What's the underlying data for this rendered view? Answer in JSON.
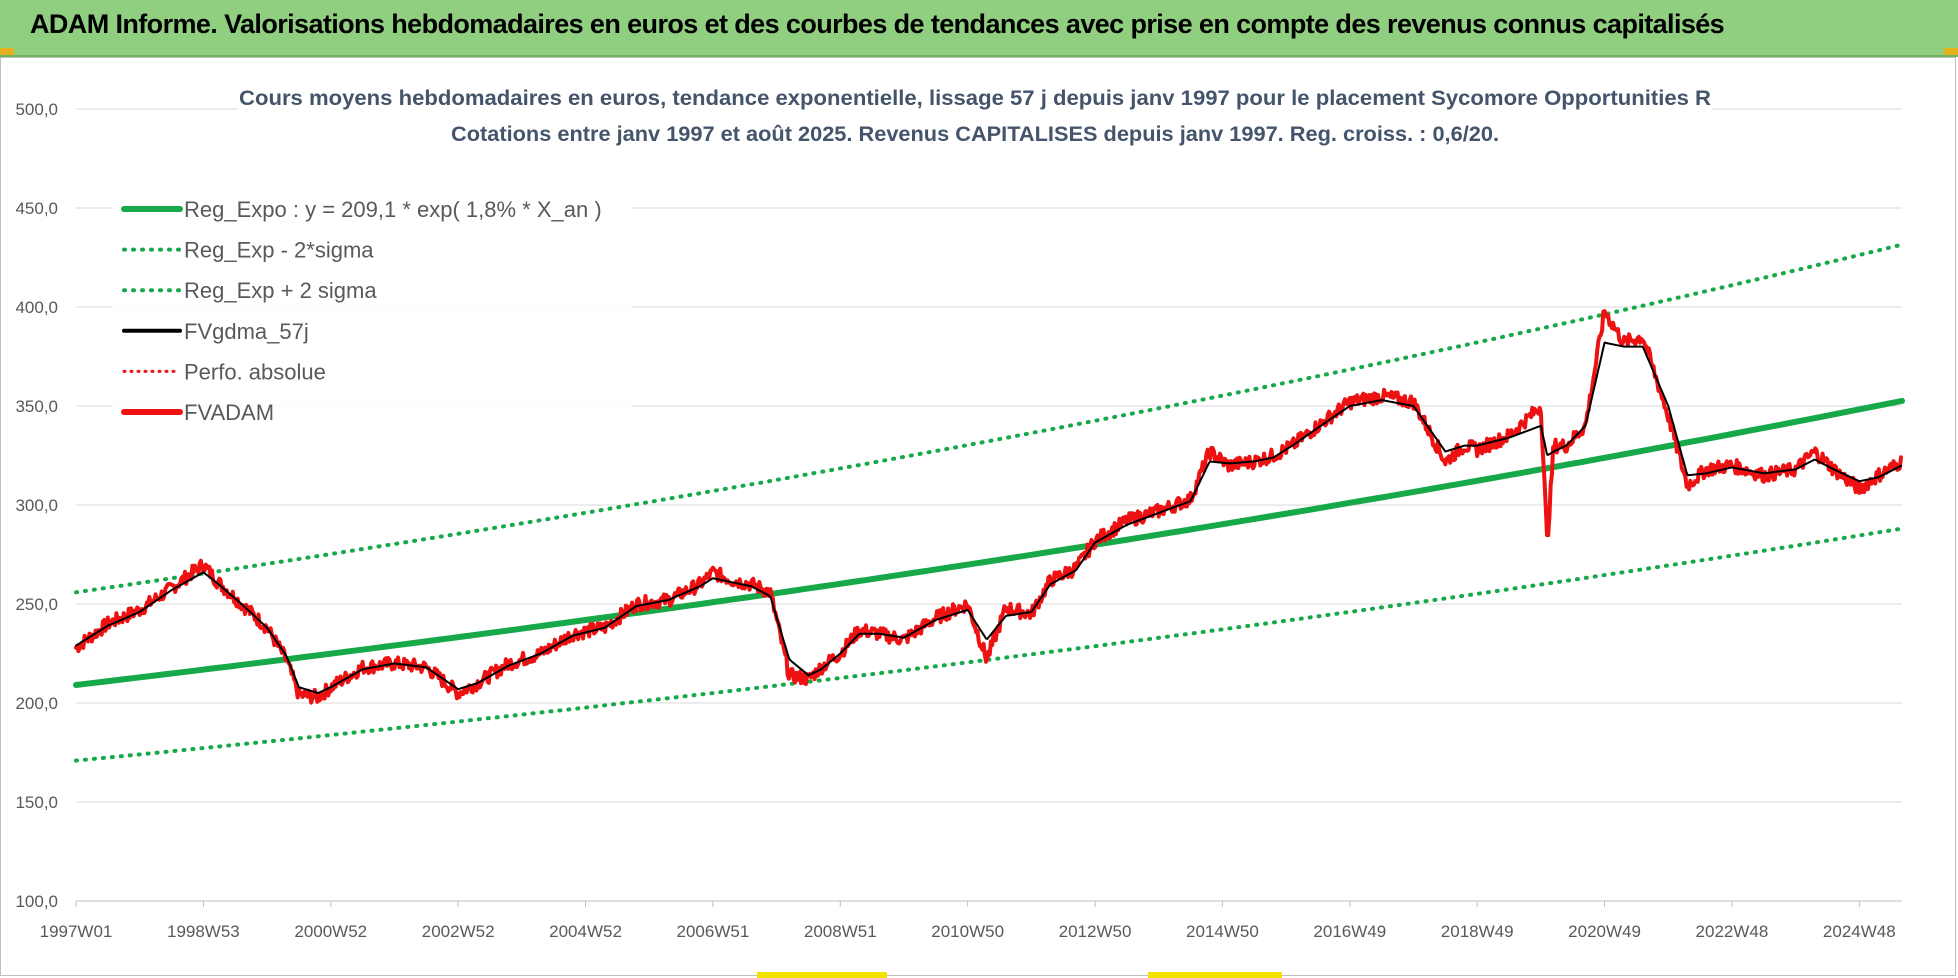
{
  "header": {
    "title": "ADAM Informe. Valorisations hebdomadaires en euros et des courbes de tendances avec prise en compte des revenus connus capitalisés"
  },
  "colors": {
    "header_bg": "#8fcf7f",
    "reg": "#17a84a",
    "ma": "#000000",
    "price": "#ee1111",
    "perf": "#ee1111",
    "grid": "#d9d9d9",
    "axis_text": "#595959",
    "title_text": "#44546a"
  },
  "chart_data": {
    "type": "line",
    "title_line1": "Cours moyens hebdomadaires en euros, tendance exponentielle, lissage 57 j depuis janv 1997  pour le placement Sycomore Opportunities R",
    "title_line2": "Cotations entre janv 1997 et août 2025. Revenus CAPITALISES depuis janv 1997. Reg. croiss. : 0,6/20.",
    "xlabel": "",
    "ylabel": "",
    "x_range": [
      1997.0,
      2025.67
    ],
    "ylim": [
      100,
      500
    ],
    "y_ticks": [
      "100,0",
      "150,0",
      "200,0",
      "250,0",
      "300,0",
      "350,0",
      "400,0",
      "450,0",
      "500,0"
    ],
    "x_ticks": [
      {
        "label": "1997W01",
        "x": 1997.0
      },
      {
        "label": "1998W53",
        "x": 1999.0
      },
      {
        "label": "2000W52",
        "x": 2001.0
      },
      {
        "label": "2002W52",
        "x": 2003.0
      },
      {
        "label": "2004W52",
        "x": 2005.0
      },
      {
        "label": "2006W51",
        "x": 2007.0
      },
      {
        "label": "2008W51",
        "x": 2009.0
      },
      {
        "label": "2010W50",
        "x": 2011.0
      },
      {
        "label": "2012W50",
        "x": 2013.0
      },
      {
        "label": "2014W50",
        "x": 2015.0
      },
      {
        "label": "2016W49",
        "x": 2017.0
      },
      {
        "label": "2018W49",
        "x": 2019.0
      },
      {
        "label": "2020W49",
        "x": 2021.0
      },
      {
        "label": "2022W48",
        "x": 2023.0
      },
      {
        "label": "2024W48",
        "x": 2025.0
      }
    ],
    "grid": "horizontal",
    "legend_position": "top-left",
    "legend": [
      {
        "key": "reg",
        "label": "Reg_Expo : y = 209,1 * exp( 1,8% *  X_an )",
        "style": "solid-thick",
        "color": "#17a84a"
      },
      {
        "key": "reg_minus",
        "label": "Reg_Exp - 2*sigma",
        "style": "dotted",
        "color": "#17a84a"
      },
      {
        "key": "reg_plus",
        "label": "Reg_Exp + 2 sigma",
        "style": "dotted",
        "color": "#17a84a"
      },
      {
        "key": "ma",
        "label": "FVgdma_57j",
        "style": "solid",
        "color": "#000000"
      },
      {
        "key": "perf",
        "label": "Perfo. absolue",
        "style": "dotted-thin",
        "color": "#ee1111"
      },
      {
        "key": "price",
        "label": "FVADAM",
        "style": "solid-thick",
        "color": "#ee1111"
      }
    ],
    "series": [
      {
        "key": "reg",
        "x": [
          1997.0,
          2025.67
        ],
        "y": [
          209.1,
          352.6
        ]
      },
      {
        "key": "reg_minus",
        "x": [
          1997.0,
          2025.67
        ],
        "y": [
          170.9,
          288.1
        ]
      },
      {
        "key": "reg_plus",
        "x": [
          1997.0,
          2025.67
        ],
        "y": [
          255.9,
          431.5
        ]
      },
      {
        "key": "price",
        "x": [
          1997.0,
          1997.5,
          1998.0,
          1998.5,
          1999.0,
          1999.2,
          1999.6,
          2000.0,
          2000.3,
          2000.5,
          2000.8,
          2001.0,
          2001.5,
          2002.0,
          2002.5,
          2003.0,
          2003.3,
          2003.8,
          2004.3,
          2004.8,
          2005.3,
          2005.8,
          2006.3,
          2006.8,
          2007.0,
          2007.3,
          2007.6,
          2007.9,
          2008.2,
          2008.5,
          2008.7,
          2009.0,
          2009.3,
          2009.6,
          2010.0,
          2010.5,
          2011.0,
          2011.3,
          2011.6,
          2012.0,
          2012.3,
          2012.7,
          2013.0,
          2013.5,
          2014.0,
          2014.5,
          2014.8,
          2015.1,
          2015.5,
          2015.8,
          2016.1,
          2016.5,
          2017.0,
          2017.5,
          2018.0,
          2018.5,
          2018.8,
          2019.0,
          2019.5,
          2020.0,
          2020.1,
          2020.2,
          2020.4,
          2020.7,
          2021.0,
          2021.3,
          2021.6,
          2022.0,
          2022.3,
          2022.6,
          2023.0,
          2023.5,
          2024.0,
          2024.3,
          2024.6,
          2025.0,
          2025.3,
          2025.67
        ],
        "y": [
          228,
          240,
          247,
          258,
          270,
          262,
          250,
          238,
          222,
          204,
          203,
          208,
          218,
          220,
          218,
          205,
          210,
          220,
          225,
          235,
          238,
          250,
          252,
          260,
          266,
          262,
          260,
          256,
          214,
          212,
          218,
          225,
          237,
          235,
          232,
          243,
          250,
          222,
          248,
          245,
          262,
          268,
          282,
          292,
          297,
          303,
          327,
          320,
          322,
          325,
          330,
          340,
          352,
          355,
          352,
          322,
          330,
          328,
          335,
          350,
          280,
          330,
          330,
          340,
          398,
          382,
          385,
          345,
          310,
          318,
          320,
          315,
          318,
          327,
          318,
          308,
          315,
          322
        ]
      },
      {
        "key": "ma",
        "x": [
          1997.0,
          1997.5,
          1998.0,
          1998.5,
          1999.0,
          1999.2,
          1999.6,
          2000.0,
          2000.3,
          2000.5,
          2000.8,
          2001.0,
          2001.5,
          2002.0,
          2002.5,
          2003.0,
          2003.3,
          2003.8,
          2004.3,
          2004.8,
          2005.3,
          2005.8,
          2006.3,
          2006.8,
          2007.0,
          2007.3,
          2007.6,
          2007.9,
          2008.2,
          2008.5,
          2008.7,
          2009.0,
          2009.3,
          2009.6,
          2010.0,
          2010.5,
          2011.0,
          2011.3,
          2011.6,
          2012.0,
          2012.3,
          2012.7,
          2013.0,
          2013.5,
          2014.0,
          2014.5,
          2014.8,
          2015.1,
          2015.5,
          2015.8,
          2016.1,
          2016.5,
          2017.0,
          2017.5,
          2018.0,
          2018.5,
          2018.8,
          2019.0,
          2019.5,
          2020.0,
          2020.1,
          2020.2,
          2020.4,
          2020.7,
          2021.0,
          2021.3,
          2021.6,
          2022.0,
          2022.3,
          2022.6,
          2023.0,
          2023.5,
          2024.0,
          2024.3,
          2024.6,
          2025.0,
          2025.3,
          2025.67
        ],
        "y": [
          229,
          239,
          246,
          257,
          266,
          261,
          250,
          238,
          224,
          208,
          205,
          208,
          217,
          220,
          218,
          207,
          210,
          219,
          225,
          234,
          238,
          249,
          252,
          259,
          263,
          261,
          259,
          254,
          222,
          214,
          217,
          225,
          235,
          235,
          233,
          242,
          247,
          232,
          244,
          246,
          260,
          267,
          281,
          290,
          296,
          302,
          322,
          321,
          322,
          324,
          330,
          339,
          350,
          353,
          350,
          327,
          330,
          330,
          334,
          340,
          325,
          327,
          330,
          340,
          382,
          380,
          380,
          350,
          315,
          316,
          319,
          316,
          318,
          323,
          318,
          312,
          314,
          320
        ]
      }
    ]
  }
}
